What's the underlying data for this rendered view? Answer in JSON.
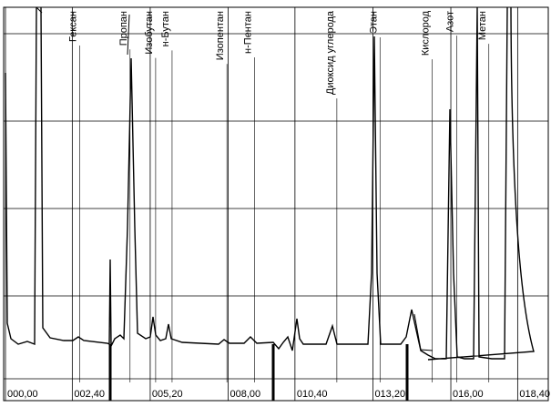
{
  "chart_data": {
    "type": "line",
    "xlim": [
      0,
      19.5
    ],
    "xticks": [
      {
        "value": 0,
        "label": "000,00"
      },
      {
        "value": 2.4,
        "label": "002,40"
      },
      {
        "value": 5.2,
        "label": "005,20"
      },
      {
        "value": 8.0,
        "label": "008,00"
      },
      {
        "value": 10.4,
        "label": "010,40"
      },
      {
        "value": 13.2,
        "label": "013,20"
      },
      {
        "value": 16.0,
        "label": "016,00"
      },
      {
        "value": 18.4,
        "label": "018,40"
      }
    ],
    "grid": true,
    "annotations": [
      {
        "text": "Гексан",
        "x": 2.6
      },
      {
        "text": "Пропан",
        "x": 4.41
      },
      {
        "text": "Изобутан",
        "x": 5.33
      },
      {
        "text": "н-Бутан",
        "x": 5.92
      },
      {
        "text": "Изопентан",
        "x": 7.89
      },
      {
        "text": "н-Пентан",
        "x": 8.88
      },
      {
        "text": "Диоксид углерода",
        "x": 11.84
      },
      {
        "text": "Этан",
        "x": 13.39
      },
      {
        "text": "Кислород",
        "x": 15.26
      },
      {
        "text": "Азот",
        "x": 16.15
      },
      {
        "text": "Метан",
        "x": 17.3
      }
    ]
  }
}
